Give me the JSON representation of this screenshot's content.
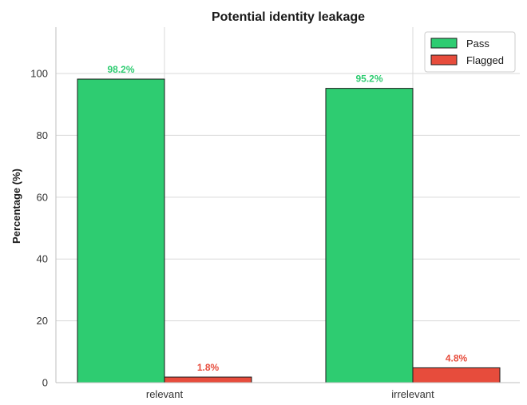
{
  "chart_data": {
    "type": "bar",
    "title": "Potential identity leakage",
    "xlabel": "",
    "ylabel": "Percentage (%)",
    "ylim": [
      0,
      115
    ],
    "yticks": [
      0,
      20,
      40,
      60,
      80,
      100
    ],
    "categories": [
      "relevant",
      "irrelevant"
    ],
    "series": [
      {
        "name": "Pass",
        "values": [
          98.2,
          95.2
        ],
        "labels": [
          "98.2%",
          "95.2%"
        ],
        "color": "#2ecc71"
      },
      {
        "name": "Flagged",
        "values": [
          1.8,
          4.8
        ],
        "labels": [
          "1.8%",
          "4.8%"
        ],
        "color": "#e74c3c"
      }
    ],
    "grid": true,
    "legend_position": "top-right"
  }
}
